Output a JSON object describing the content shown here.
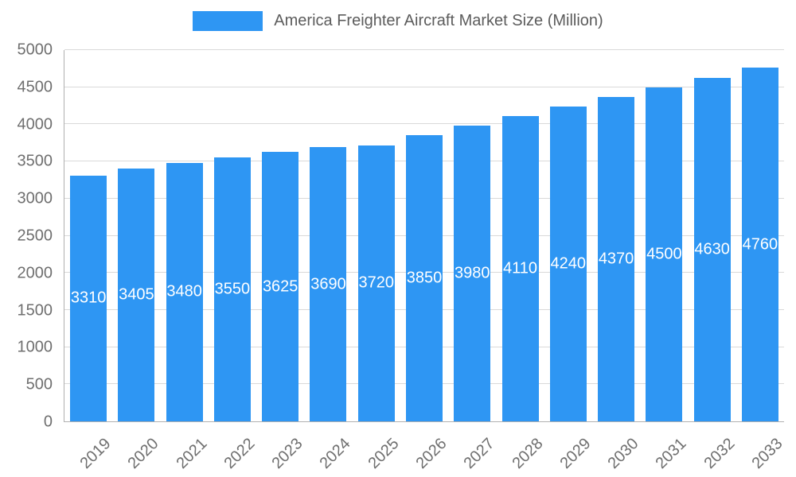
{
  "chart_data": {
    "type": "bar",
    "title": "America Freighter Aircraft Market Size (Million)",
    "categories": [
      "2019",
      "2020",
      "2021",
      "2022",
      "2023",
      "2024",
      "2025",
      "2026",
      "2027",
      "2028",
      "2029",
      "2030",
      "2031",
      "2032",
      "2033"
    ],
    "values": [
      3310,
      3405,
      3480,
      3550,
      3625,
      3690,
      3720,
      3850,
      3980,
      4110,
      4240,
      4370,
      4500,
      4630,
      4760
    ],
    "yticks": [
      0,
      500,
      1000,
      1500,
      2000,
      2500,
      3000,
      3500,
      4000,
      4500,
      5000
    ],
    "ylim": [
      0,
      5000
    ],
    "ytick_step": 500,
    "xlabel": "",
    "ylabel": "",
    "grid": true,
    "legend_position": "top",
    "bar_color": "#2E96F3",
    "value_label_color": "#FFFFFF"
  }
}
